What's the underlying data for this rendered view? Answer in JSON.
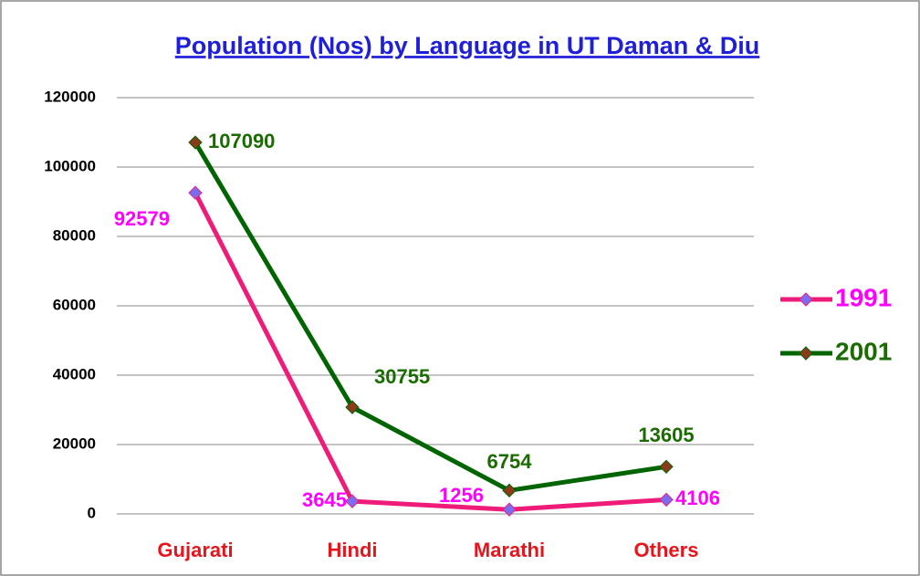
{
  "chart_data": {
    "type": "line",
    "title": "Population (Nos) by Language in UT Daman & Diu",
    "categories": [
      "Gujarati",
      "Hindi",
      "Marathi",
      "Others"
    ],
    "series": [
      {
        "name": "1991",
        "color": "#ee1c78",
        "marker_color": "#7b6cf0",
        "label_color": "#ff00ff",
        "values": [
          92579,
          3645,
          1256,
          4106
        ]
      },
      {
        "name": "2001",
        "color": "#006400",
        "marker_color": "#8b3a1a",
        "label_color": "#1a6b00",
        "values": [
          107090,
          30755,
          6754,
          13605
        ]
      }
    ],
    "ylim": [
      0,
      120000
    ],
    "yticks": [
      0,
      20000,
      40000,
      60000,
      80000,
      100000,
      120000
    ],
    "grid": true,
    "legend": "right"
  }
}
